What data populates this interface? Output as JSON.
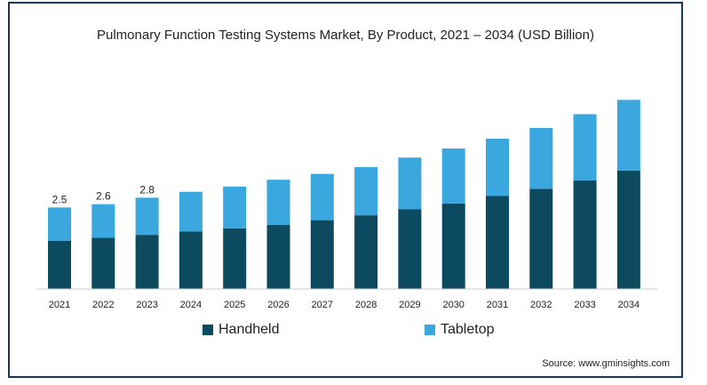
{
  "title": "Pulmonary Function Testing Systems Market, By Product, 2021 – 2034 (USD Billion)",
  "source": "Source: www.gminsights.com",
  "colors": {
    "handheld": "#0b4a5f",
    "tabletop": "#3aa7df",
    "frame": "#13395a",
    "axis": "#cccccc"
  },
  "chart_data": {
    "type": "bar",
    "stacked": true,
    "title": "Pulmonary Function Testing Systems Market, By Product, 2021 – 2034 (USD Billion)",
    "categories": [
      "2021",
      "2022",
      "2023",
      "2024",
      "2025",
      "2026",
      "2027",
      "2028",
      "2029",
      "2030",
      "2031",
      "2032",
      "2033",
      "2034"
    ],
    "series": [
      {
        "name": "Handheld",
        "values": [
          1.48,
          1.57,
          1.66,
          1.76,
          1.86,
          1.97,
          2.11,
          2.26,
          2.45,
          2.62,
          2.85,
          3.07,
          3.33,
          3.63
        ]
      },
      {
        "name": "Tabletop",
        "values": [
          1.02,
          1.03,
          1.14,
          1.22,
          1.28,
          1.38,
          1.42,
          1.48,
          1.58,
          1.69,
          1.76,
          1.87,
          2.03,
          2.17
        ]
      }
    ],
    "data_labels": [
      "2.5",
      "2.6",
      "2.8",
      "",
      "",
      "",
      "",
      "",
      "",
      "",
      "",
      "",
      "",
      ""
    ],
    "legend": [
      "Handheld",
      "Tabletop"
    ],
    "legend_position": "bottom",
    "ylim": [
      0,
      6.3
    ],
    "grid": false
  }
}
